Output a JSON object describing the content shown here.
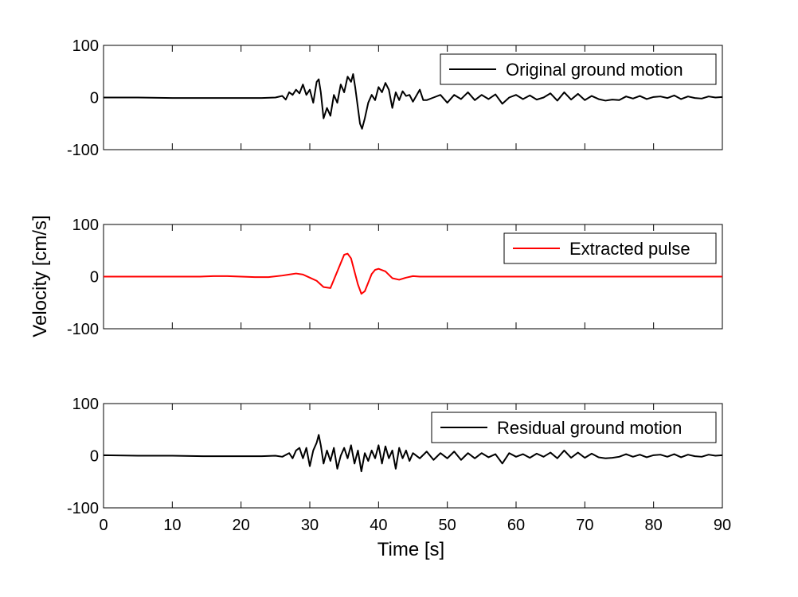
{
  "chart_data": {
    "type": "line",
    "ylabel": "Velocity [cm/s]",
    "xlabel": "Time [s]",
    "xlim": [
      0,
      90
    ],
    "ylim": [
      -100,
      100
    ],
    "x_ticks": [
      "0",
      "10",
      "20",
      "30",
      "40",
      "50",
      "60",
      "70",
      "80",
      "90"
    ],
    "y_ticks": [
      "100",
      "0",
      "-100"
    ],
    "grid": false,
    "legend_position": "top-right",
    "panels": [
      {
        "id": "original",
        "series": [
          {
            "name": "Original ground motion",
            "color": "#000000",
            "x": [
              0,
              5,
              10,
              15,
              20,
              23,
              25,
              26,
              26.5,
              27,
              27.5,
              28,
              28.5,
              29,
              29.5,
              30,
              30.5,
              31,
              31.3,
              31.6,
              32,
              32.5,
              33,
              33.5,
              34,
              34.5,
              35,
              35.5,
              36,
              36.3,
              36.6,
              37,
              37.3,
              37.6,
              38,
              38.5,
              39,
              39.5,
              40,
              40.5,
              41,
              41.5,
              42,
              42.5,
              43,
              43.5,
              44,
              44.5,
              45,
              46,
              46.5,
              47,
              48,
              49,
              50,
              51,
              52,
              53,
              54,
              55,
              56,
              57,
              58,
              59,
              60,
              61,
              62,
              63,
              64,
              65,
              66,
              67,
              68,
              69,
              70,
              71,
              72,
              73,
              74,
              75,
              76,
              77,
              78,
              79,
              80,
              81,
              82,
              83,
              84,
              85,
              86,
              87,
              88,
              89,
              90
            ],
            "values": [
              0,
              0,
              -1,
              -1,
              -1,
              -1,
              0,
              3,
              -4,
              10,
              5,
              15,
              8,
              25,
              5,
              15,
              -10,
              30,
              35,
              10,
              -40,
              -20,
              -35,
              5,
              -10,
              25,
              10,
              40,
              30,
              45,
              20,
              -20,
              -50,
              -60,
              -40,
              -10,
              5,
              -5,
              20,
              10,
              28,
              15,
              -20,
              10,
              -5,
              12,
              3,
              5,
              -8,
              15,
              -5,
              -5,
              0,
              5,
              -10,
              5,
              -3,
              10,
              -5,
              5,
              -3,
              6,
              -12,
              0,
              5,
              -3,
              4,
              -4,
              0,
              8,
              -6,
              10,
              -4,
              7,
              -5,
              3,
              -3,
              -6,
              -4,
              -5,
              2,
              -2,
              3,
              -3,
              1,
              2,
              -1,
              4,
              -3,
              2,
              -1,
              -2,
              2,
              0,
              1
            ],
            "stroke_width": 2
          }
        ]
      },
      {
        "id": "pulse",
        "series": [
          {
            "name": "Extracted pulse",
            "color": "#ff0000",
            "x": [
              0,
              14,
              16,
              18,
              20,
              22,
              24,
              26,
              27,
              28,
              29,
              30,
              31,
              32,
              33,
              34,
              35,
              35.5,
              36,
              37,
              37.5,
              38,
              39,
              39.5,
              40,
              41,
              42,
              43,
              44,
              45,
              46,
              50,
              55,
              60,
              90
            ],
            "values": [
              0,
              0,
              1,
              1,
              0,
              -1,
              -1,
              2,
              4,
              6,
              4,
              -2,
              -8,
              -20,
              -22,
              10,
              42,
              44,
              35,
              -15,
              -33,
              -28,
              5,
              13,
              15,
              10,
              -3,
              -6,
              -2,
              1,
              0,
              0,
              0,
              0,
              0
            ],
            "stroke_width": 2
          }
        ]
      },
      {
        "id": "residual",
        "series": [
          {
            "name": "Residual ground motion",
            "color": "#000000",
            "x": [
              0,
              5,
              10,
              15,
              20,
              23,
              25,
              26,
              27,
              27.5,
              28,
              28.5,
              29,
              29.5,
              30,
              30.5,
              31,
              31.3,
              31.6,
              32,
              32.5,
              33,
              33.5,
              34,
              34.5,
              35,
              35.5,
              36,
              36.5,
              37,
              37.5,
              38,
              38.5,
              39,
              39.5,
              40,
              40.5,
              41,
              41.5,
              42,
              42.5,
              43,
              43.5,
              44,
              44.5,
              45,
              46,
              47,
              48,
              49,
              50,
              51,
              52,
              53,
              54,
              55,
              56,
              57,
              58,
              59,
              60,
              61,
              62,
              63,
              64,
              65,
              66,
              67,
              68,
              69,
              70,
              71,
              72,
              73,
              74,
              75,
              76,
              77,
              78,
              79,
              80,
              81,
              82,
              83,
              84,
              85,
              86,
              87,
              88,
              89,
              90
            ],
            "values": [
              1,
              0,
              0,
              -1,
              -1,
              -1,
              0,
              -2,
              5,
              -5,
              10,
              15,
              -5,
              15,
              -20,
              10,
              25,
              40,
              20,
              -15,
              10,
              -10,
              15,
              -25,
              0,
              15,
              -5,
              20,
              -15,
              10,
              -30,
              5,
              -10,
              10,
              -5,
              20,
              -15,
              18,
              -5,
              10,
              -25,
              15,
              -5,
              10,
              -10,
              5,
              -5,
              8,
              -8,
              5,
              -5,
              8,
              -8,
              5,
              -5,
              5,
              -3,
              3,
              -15,
              5,
              -2,
              3,
              -4,
              4,
              -2,
              6,
              -5,
              10,
              -4,
              6,
              -4,
              4,
              -3,
              -5,
              -4,
              -2,
              3,
              -2,
              2,
              -3,
              1,
              2,
              -2,
              3,
              -3,
              2,
              -1,
              -2,
              2,
              0,
              1
            ],
            "stroke_width": 2
          }
        ]
      }
    ]
  }
}
